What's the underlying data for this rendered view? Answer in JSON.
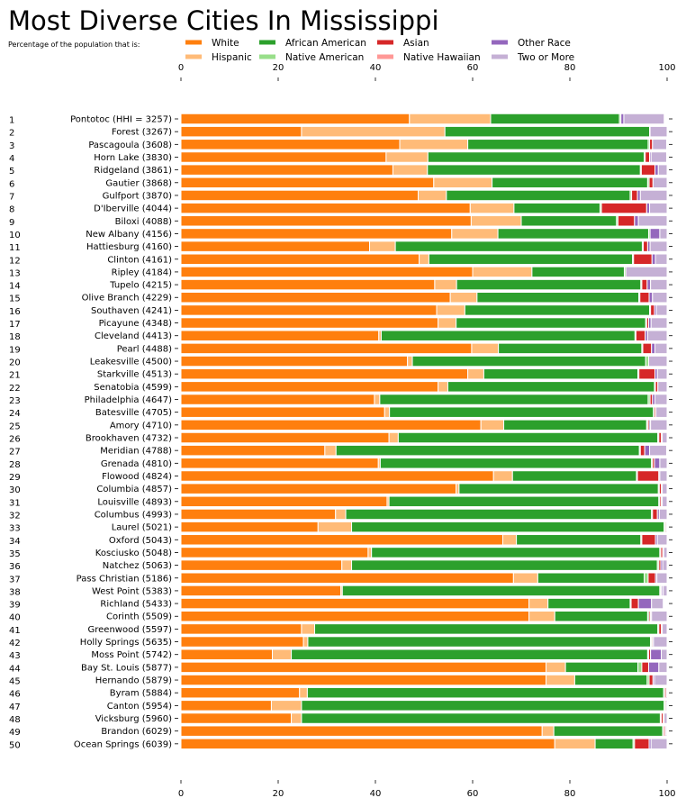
{
  "chart_data": {
    "type": "bar",
    "orientation": "horizontal",
    "stacked": true,
    "title": "Most Diverse Cities In Mississippi",
    "subtitle": "Percentage of the population that is:",
    "xlim": [
      0,
      100
    ],
    "xticks": [
      0,
      20,
      40,
      60,
      80,
      100
    ],
    "legend_placement": "top",
    "grid": false,
    "series_names": [
      "White",
      "Hispanic",
      "African American",
      "Native American",
      "Asian",
      "Native Hawaiian",
      "Other Race",
      "Two or More"
    ],
    "colors": [
      "#ff7f0e",
      "#ffbb78",
      "#2ca02c",
      "#98df8a",
      "#d62728",
      "#ff9896",
      "#9467bd",
      "#c5b0d5"
    ],
    "ranks": [
      "1",
      "2",
      "3",
      "4",
      "5",
      "6",
      "7",
      "8",
      "9",
      "10",
      "11",
      "12",
      "13",
      "14",
      "15",
      "16",
      "17",
      "18",
      "19",
      "20",
      "21",
      "22",
      "23",
      "24",
      "25",
      "26",
      "27",
      "28",
      "29",
      "30",
      "31",
      "32",
      "33",
      "34",
      "35",
      "36",
      "37",
      "38",
      "39",
      "40",
      "41",
      "42",
      "43",
      "44",
      "45",
      "46",
      "47",
      "48",
      "49",
      "50"
    ],
    "categories": [
      "Pontotoc (HHI = 3257)",
      "Forest (3267)",
      "Pascagoula (3608)",
      "Horn Lake (3830)",
      "Ridgeland (3861)",
      "Gautier (3868)",
      "Gulfport (3870)",
      "D'Iberville (4044)",
      "Biloxi (4088)",
      "New Albany (4156)",
      "Hattiesburg (4160)",
      "Clinton (4161)",
      "Ripley (4184)",
      "Tupelo (4215)",
      "Olive Branch (4229)",
      "Southaven (4241)",
      "Picayune (4348)",
      "Cleveland (4413)",
      "Pearl (4488)",
      "Leakesville (4500)",
      "Starkville (4513)",
      "Senatobia (4599)",
      "Philadelphia (4647)",
      "Batesville (4705)",
      "Amory (4710)",
      "Brookhaven (4732)",
      "Meridian (4788)",
      "Grenada (4810)",
      "Flowood (4824)",
      "Columbia (4857)",
      "Louisville (4893)",
      "Columbus (4993)",
      "Laurel (5021)",
      "Oxford (5043)",
      "Kosciusko (5048)",
      "Natchez (5063)",
      "Pass Christian (5186)",
      "West Point (5383)",
      "Richland (5433)",
      "Corinth (5509)",
      "Greenwood (5597)",
      "Holly Springs (5635)",
      "Moss Point (5742)",
      "Bay St. Louis (5877)",
      "Hernando (5879)",
      "Byram (5884)",
      "Canton (5954)",
      "Vicksburg (5960)",
      "Brandon (6029)",
      "Ocean Springs (6039)"
    ],
    "values": [
      [
        47,
        16.7,
        26.5,
        0.3,
        0,
        0,
        0.6,
        8.3
      ],
      [
        24.8,
        29.5,
        42.1,
        0.1,
        0,
        0,
        0,
        3.5
      ],
      [
        45,
        14,
        37.1,
        0.3,
        0.6,
        0,
        0,
        2.9
      ],
      [
        42.2,
        8.6,
        44.5,
        0.2,
        0.9,
        0,
        0.3,
        3.2
      ],
      [
        43.6,
        7.1,
        43.8,
        0.2,
        2.8,
        0,
        0.7,
        1.8
      ],
      [
        52,
        12,
        32,
        0.3,
        0.8,
        0,
        0,
        2.9
      ],
      [
        48.8,
        5.8,
        37.8,
        0.3,
        1.2,
        0,
        0.6,
        5.5
      ],
      [
        59.5,
        9,
        17.7,
        0.3,
        9.3,
        0,
        0.6,
        3.6
      ],
      [
        59.7,
        10.3,
        19.6,
        0.3,
        3.4,
        0,
        0.8,
        5.9
      ],
      [
        55.7,
        9.5,
        31,
        0.3,
        0,
        0,
        2,
        1.5
      ],
      [
        38.8,
        5.3,
        50.8,
        0.2,
        0.9,
        0,
        0.5,
        3.5
      ],
      [
        49,
        2,
        41.9,
        0.2,
        3.8,
        0,
        0.7,
        2.4
      ],
      [
        60,
        12.2,
        19,
        0.3,
        0,
        0,
        0,
        8.5
      ],
      [
        52.2,
        4.5,
        37.9,
        0.2,
        1.1,
        0,
        0.7,
        3.4
      ],
      [
        55.4,
        5.5,
        33.3,
        0.2,
        1.9,
        0,
        0.7,
        3
      ],
      [
        52.6,
        5.8,
        38,
        0.2,
        0.8,
        0,
        0.4,
        2.2
      ],
      [
        52.9,
        3.7,
        39,
        0.2,
        0.4,
        0,
        0.5,
        3.3
      ],
      [
        40.7,
        0.5,
        52.2,
        0.2,
        1.9,
        0,
        0.5,
        4
      ],
      [
        59.8,
        5.5,
        29.5,
        0.2,
        1.8,
        0,
        0.7,
        2.5
      ],
      [
        46.6,
        1,
        48,
        0.6,
        0,
        0,
        0,
        3.8
      ],
      [
        59,
        3.3,
        31.7,
        0.2,
        3.3,
        0,
        0.5,
        2
      ],
      [
        52.9,
        2,
        42.5,
        0.2,
        0.5,
        0,
        0,
        1.9
      ],
      [
        39.8,
        1.1,
        55.2,
        0.4,
        0.5,
        0,
        0.5,
        2.5
      ],
      [
        41.9,
        1,
        54.3,
        0.2,
        0.3,
        0,
        0,
        2.3
      ],
      [
        61.7,
        4.7,
        29.4,
        0.2,
        0.3,
        0,
        0.3,
        3.4
      ],
      [
        42.8,
        1.9,
        53.4,
        0.2,
        0.5,
        0,
        0.2,
        1
      ],
      [
        29.6,
        2.3,
        62.4,
        0.2,
        0.9,
        0,
        1,
        3.5
      ],
      [
        40.6,
        0.4,
        55.8,
        0.2,
        0.4,
        0,
        1.1,
        1.5
      ],
      [
        64.3,
        3.9,
        25.5,
        0.2,
        4.4,
        0,
        0.2,
        1.5
      ],
      [
        56.6,
        0.6,
        41,
        0.2,
        0.4,
        0,
        0.2,
        1
      ],
      [
        42.4,
        0.4,
        55.5,
        0.2,
        0.3,
        0,
        0.2,
        1
      ],
      [
        31.8,
        2.1,
        62.9,
        0.2,
        1,
        0,
        0.4,
        1.6
      ],
      [
        28.2,
        6.9,
        64.3,
        0.2,
        0.2,
        0,
        0,
        0.2
      ],
      [
        66.2,
        2.8,
        25.6,
        0.2,
        2.8,
        0,
        0.4,
        2
      ],
      [
        38.5,
        0.7,
        59.3,
        0.2,
        0.4,
        0,
        0.2,
        0.7
      ],
      [
        33.1,
        2,
        62.9,
        0.3,
        0.4,
        0,
        0.4,
        0.9
      ],
      [
        68.4,
        5,
        21.9,
        0.8,
        1.5,
        0,
        0.3,
        2.1
      ],
      [
        32.9,
        0.3,
        65.3,
        0.2,
        0.2,
        0,
        0.3,
        0.8
      ],
      [
        71.6,
        3.9,
        16.9,
        0.2,
        1.5,
        0,
        2.7,
        2.4
      ],
      [
        71.6,
        5.3,
        19.1,
        0.3,
        0.3,
        0,
        0.2,
        3.2
      ],
      [
        24.8,
        2.7,
        70.6,
        0.2,
        0.5,
        0,
        0.2,
        1
      ],
      [
        25.2,
        0.9,
        70.5,
        0.2,
        0.2,
        0,
        0.2,
        2.8
      ],
      [
        18.8,
        3.9,
        73.3,
        0.2,
        0.4,
        0,
        2.2,
        1.2
      ],
      [
        75.1,
        4,
        14.9,
        0.8,
        1.4,
        0,
        2.1,
        1.7
      ],
      [
        75.1,
        5.9,
        14.9,
        0.4,
        0.8,
        0,
        0.3,
        2.6
      ],
      [
        24.4,
        1.6,
        73.3,
        0.2,
        0.3,
        0,
        0.2,
        0
      ],
      [
        18.6,
        6.2,
        74.6,
        0.2,
        0.2,
        0,
        0.2,
        0
      ],
      [
        22.7,
        2.1,
        73.8,
        0.2,
        0.4,
        0,
        0.2,
        0.6
      ],
      [
        74.3,
        2.4,
        22.4,
        0.2,
        0.3,
        0,
        0.2,
        0.2
      ],
      [
        76.9,
        8.3,
        7.8,
        0.3,
        3,
        0,
        0.4,
        3.3
      ]
    ]
  }
}
